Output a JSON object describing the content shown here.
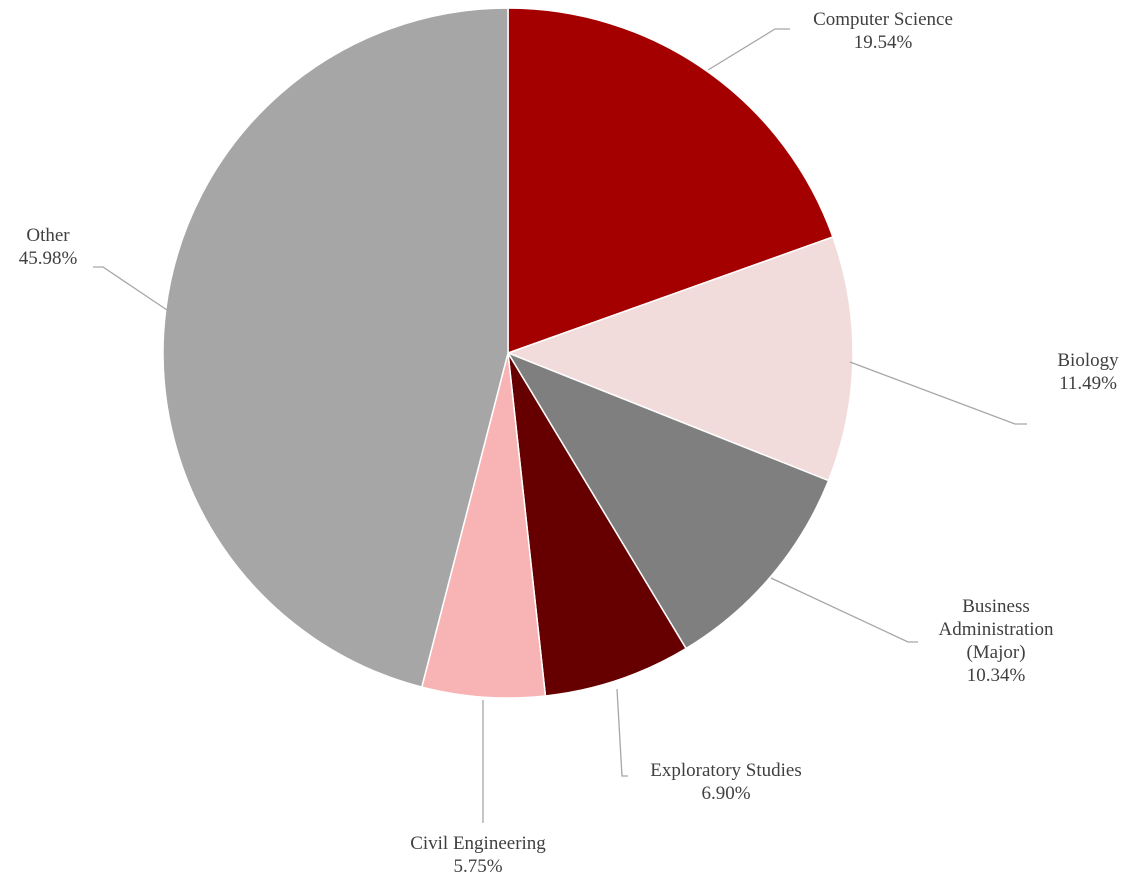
{
  "chart_data": {
    "type": "pie",
    "start_angle_deg": 0,
    "direction": "clockwise",
    "legend": "none",
    "slices": [
      {
        "label": "Computer Science",
        "value": 19.54,
        "value_label": "19.54%",
        "color": "#a50000"
      },
      {
        "label": "Biology",
        "value": 11.49,
        "value_label": "11.49%",
        "color": "#f2dcdb"
      },
      {
        "label": "Business Administration (Major)",
        "value": 10.34,
        "value_label": "10.34%",
        "color": "#7f7f7f"
      },
      {
        "label": "Exploratory Studies",
        "value": 6.9,
        "value_label": "6.90%",
        "color": "#660000"
      },
      {
        "label": "Civil Engineering",
        "value": 5.75,
        "value_label": "5.75%",
        "color": "#f8b4b4"
      },
      {
        "label": "Other",
        "value": 45.98,
        "value_label": "45.98%",
        "color": "#a6a6a6"
      }
    ]
  }
}
